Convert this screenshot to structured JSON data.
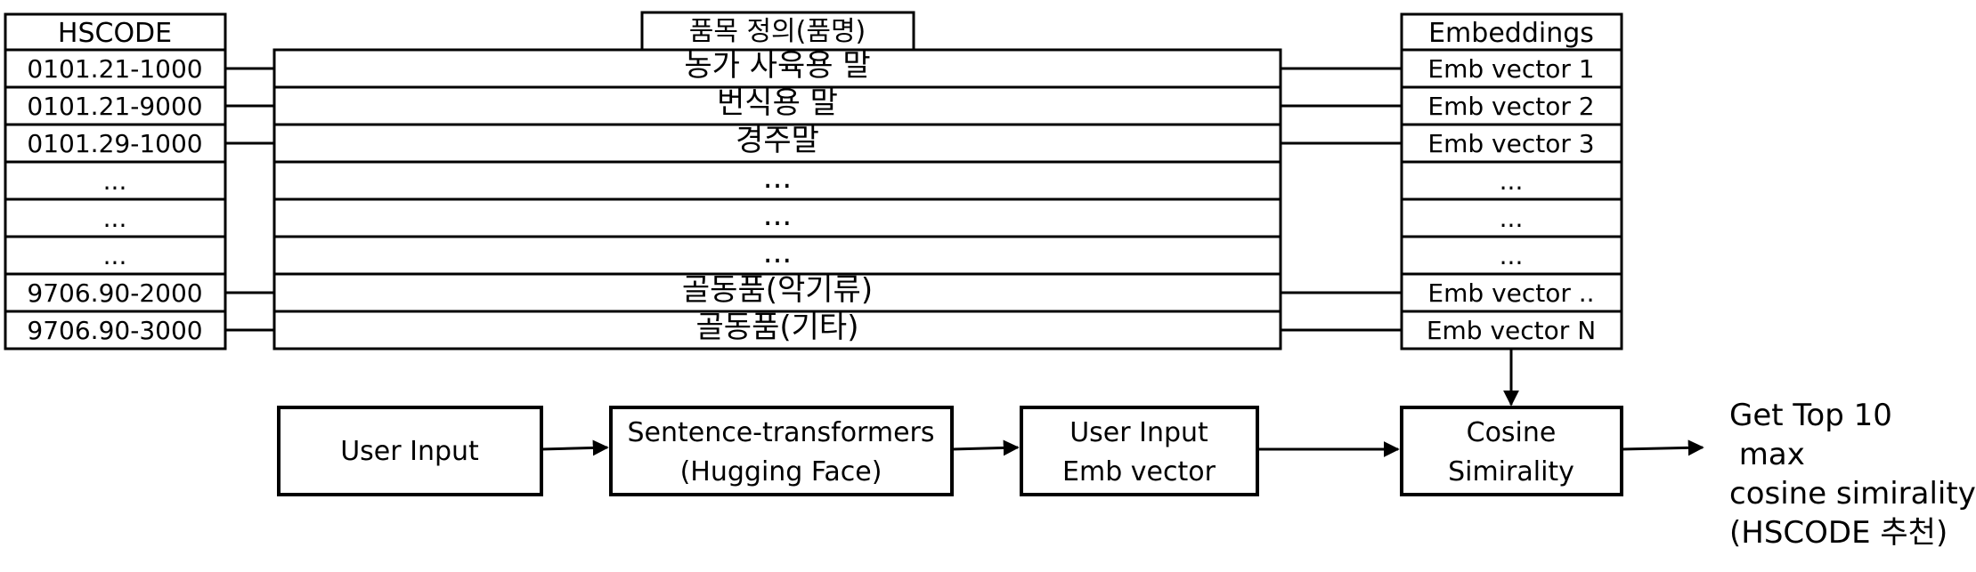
{
  "hscode": {
    "header": "HSCODE",
    "rows": [
      "0101.21-1000",
      "0101.21-9000",
      "0101.29-1000",
      "...",
      "...",
      "...",
      "9706.90-2000",
      "9706.90-3000"
    ]
  },
  "definitions": {
    "header": "품목 정의(품명)",
    "rows": [
      "농가 사육용 말",
      "번식용 말",
      "경주말",
      "...",
      "...",
      "...",
      "골동품(악기류)",
      "골동품(기타)"
    ]
  },
  "embeddings": {
    "header": "Embeddings",
    "rows": [
      "Emb vector 1",
      "Emb vector 2",
      "Emb vector 3",
      "...",
      "...",
      "...",
      "Emb vector ..",
      "Emb vector N"
    ]
  },
  "pipeline": {
    "user_input": "User Input",
    "transformer": [
      "Sentence-transformers",
      "(Hugging Face)"
    ],
    "user_emb": [
      "User Input",
      "Emb vector"
    ],
    "cosine": [
      "Cosine",
      "Simirality"
    ]
  },
  "output": [
    "Get Top 10",
    " max",
    "cosine simirality",
    "(HSCODE 추천)"
  ]
}
